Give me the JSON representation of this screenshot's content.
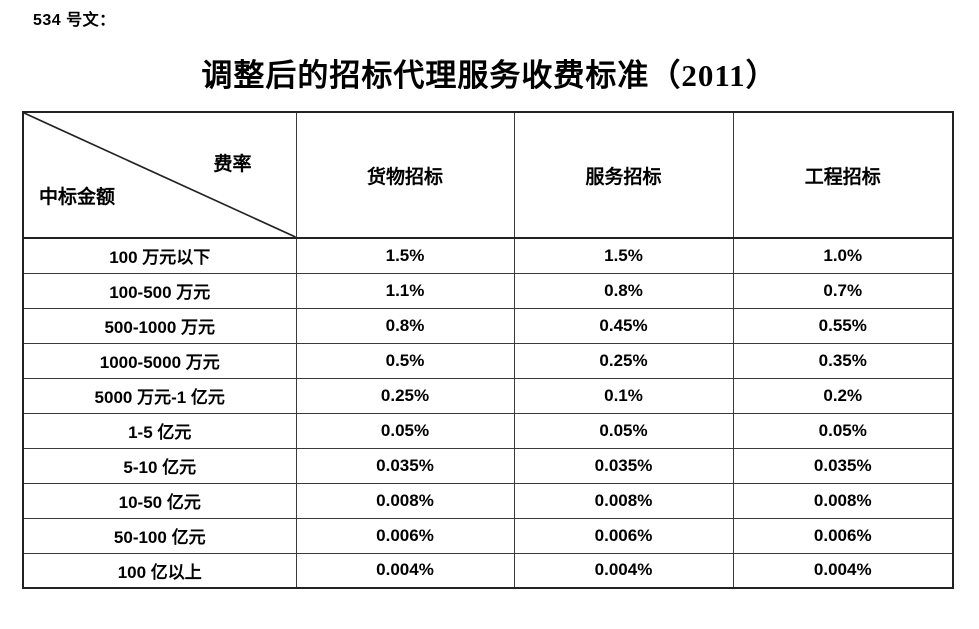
{
  "doc_ref": "534 号文：",
  "title": "调整后的招标代理服务收费标准（2011）",
  "table": {
    "corner": {
      "top_right_label": "费率",
      "bottom_left_label": "中标金额"
    },
    "columns": [
      "货物招标",
      "服务招标",
      "工程招标"
    ],
    "rows": [
      {
        "label": "100 万元以下",
        "values": [
          "1.5%",
          "1.5%",
          "1.0%"
        ]
      },
      {
        "label": "100-500 万元",
        "values": [
          "1.1%",
          "0.8%",
          "0.7%"
        ]
      },
      {
        "label": "500-1000 万元",
        "values": [
          "0.8%",
          "0.45%",
          "0.55%"
        ]
      },
      {
        "label": "1000-5000 万元",
        "values": [
          "0.5%",
          "0.25%",
          "0.35%"
        ]
      },
      {
        "label": "5000 万元-1 亿元",
        "values": [
          "0.25%",
          "0.1%",
          "0.2%"
        ]
      },
      {
        "label": "1-5 亿元",
        "values": [
          "0.05%",
          "0.05%",
          "0.05%"
        ]
      },
      {
        "label": "5-10 亿元",
        "values": [
          "0.035%",
          "0.035%",
          "0.035%"
        ]
      },
      {
        "label": "10-50 亿元",
        "values": [
          "0.008%",
          "0.008%",
          "0.008%"
        ]
      },
      {
        "label": "50-100 亿元",
        "values": [
          "0.006%",
          "0.006%",
          "0.006%"
        ]
      },
      {
        "label": "100 亿以上",
        "values": [
          "0.004%",
          "0.004%",
          "0.004%"
        ]
      }
    ],
    "line_color": "#222222"
  }
}
